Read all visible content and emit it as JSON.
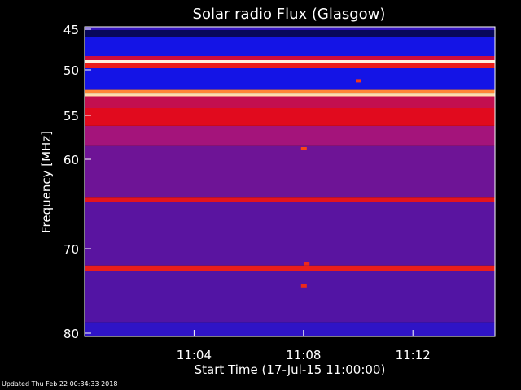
{
  "chart_data": {
    "type": "heatmap",
    "title": "Solar radio Flux (Glasgow)",
    "ylabel": "Frequency [MHz]",
    "xlabel": "Start Time (17-Jul-15 11:00:00)",
    "x_ticks": [
      "11:04",
      "11:08",
      "11:12"
    ],
    "x_tick_values_min": [
      4,
      8,
      12
    ],
    "xlim_min": [
      0,
      15
    ],
    "y_ticks": [
      45,
      50,
      55,
      60,
      70,
      80
    ],
    "ylim_mhz": [
      45,
      80
    ],
    "intensity_scale": "black-blue-purple-red-orange-white",
    "bands": [
      {
        "from": 44.0,
        "to": 45.1,
        "level": 0.3
      },
      {
        "from": 45.1,
        "to": 46.0,
        "level": 0.08
      },
      {
        "from": 46.0,
        "to": 48.3,
        "level": 0.2
      },
      {
        "from": 48.3,
        "to": 48.8,
        "level": 0.62
      },
      {
        "from": 48.8,
        "to": 49.2,
        "level": 0.98
      },
      {
        "from": 49.2,
        "to": 49.8,
        "level": 0.7
      },
      {
        "from": 49.8,
        "to": 52.2,
        "level": 0.2
      },
      {
        "from": 52.2,
        "to": 52.6,
        "level": 0.85
      },
      {
        "from": 52.6,
        "to": 52.9,
        "level": 0.95
      },
      {
        "from": 52.9,
        "to": 54.2,
        "level": 0.6
      },
      {
        "from": 54.2,
        "to": 56.2,
        "level": 0.66
      },
      {
        "from": 56.2,
        "to": 58.5,
        "level": 0.54
      },
      {
        "from": 58.5,
        "to": 64.3,
        "level": 0.45
      },
      {
        "from": 64.3,
        "to": 64.8,
        "level": 0.68
      },
      {
        "from": 64.8,
        "to": 72.0,
        "level": 0.4
      },
      {
        "from": 72.0,
        "to": 72.6,
        "level": 0.7
      },
      {
        "from": 72.6,
        "to": 78.7,
        "level": 0.38
      },
      {
        "from": 78.7,
        "to": 80.5,
        "level": 0.28
      }
    ],
    "spots": [
      {
        "t": 8.0,
        "f": 58.8,
        "level": 0.78
      },
      {
        "t": 10.0,
        "f": 51.2,
        "level": 0.75
      },
      {
        "t": 8.0,
        "f": 74.4,
        "level": 0.72
      },
      {
        "t": 8.1,
        "f": 71.8,
        "level": 0.72
      }
    ]
  },
  "footer": {
    "updated": "Updated Thu Feb 22 00:34:33 2018"
  }
}
